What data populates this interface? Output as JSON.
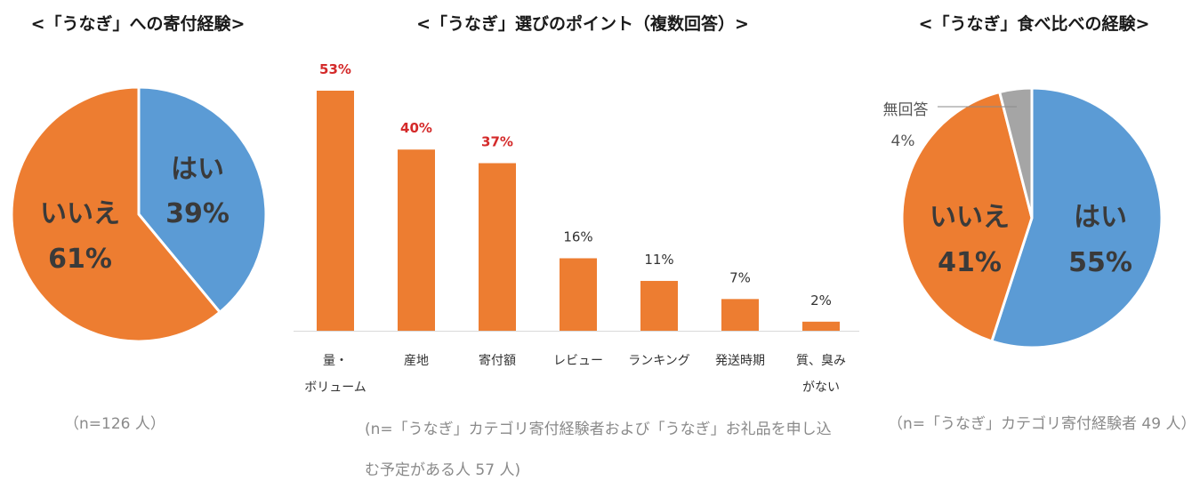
{
  "colors": {
    "blue": "#5b9bd5",
    "orange": "#ed7d31",
    "gray": "#a5a5a5",
    "highlight": "#d42a2a"
  },
  "chart_data": [
    {
      "type": "pie",
      "title": "<「うなぎ」への寄付経験>",
      "note": "（n=126 人）",
      "slices": [
        {
          "label": "はい",
          "value": 39,
          "display": "39%",
          "color": "#5b9bd5"
        },
        {
          "label": "いいえ",
          "value": 61,
          "display": "61%",
          "color": "#ed7d31"
        }
      ]
    },
    {
      "type": "bar",
      "title": "<「うなぎ」選びのポイント（複数回答）>",
      "note_line1": "(n=「うなぎ」カテゴリ寄付経験者および「うなぎ」お礼品を申し込",
      "note_line2": "む予定がある人 57 人)",
      "categories": [
        [
          "量・",
          "ボリューム"
        ],
        [
          "産地"
        ],
        [
          "寄付額"
        ],
        [
          "レビュー"
        ],
        [
          "ランキング"
        ],
        [
          "発送時期"
        ],
        [
          "質、臭み",
          "がない"
        ]
      ],
      "values": [
        53,
        40,
        37,
        16,
        11,
        7,
        2
      ],
      "value_labels": [
        "53%",
        "40%",
        "37%",
        "16%",
        "11%",
        "7%",
        "2%"
      ],
      "highlighted": [
        true,
        true,
        true,
        false,
        false,
        false,
        false
      ],
      "ylim": [
        0,
        53
      ],
      "color": "#ed7d31"
    },
    {
      "type": "pie",
      "title": "<「うなぎ」食べ比べの経験>",
      "note": "（n=「うなぎ」カテゴリ寄付経験者 49 人）",
      "slices": [
        {
          "label": "はい",
          "value": 55,
          "display": "55%",
          "color": "#5b9bd5"
        },
        {
          "label": "いいえ",
          "value": 41,
          "display": "41%",
          "color": "#ed7d31"
        },
        {
          "label": "無回答",
          "value": 4,
          "display": "4%",
          "color": "#a5a5a5"
        }
      ]
    }
  ]
}
